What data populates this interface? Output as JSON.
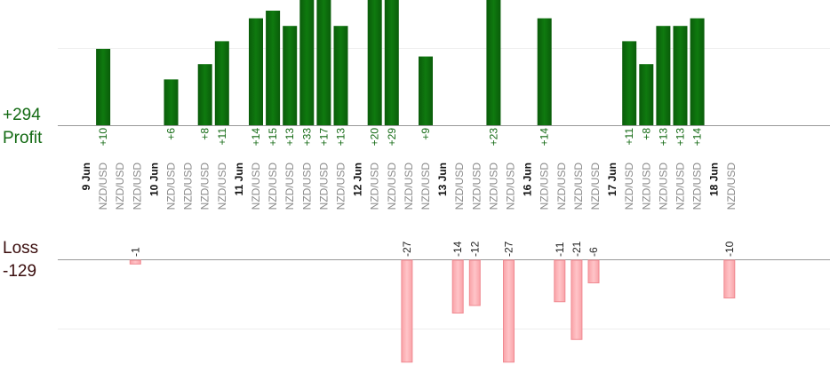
{
  "chart_data": {
    "type": "bar",
    "profit_total": "+294",
    "profit_label": "Profit",
    "loss_label": "Loss",
    "loss_total": "-129",
    "colors": {
      "profit": "#0b650b",
      "loss": "#ffb3b8",
      "profit_text": "#136a13",
      "loss_text": "#3a0d0d"
    },
    "days": [
      {
        "date": "9 Jun",
        "trades": [
          {
            "pair": "NZD/USD",
            "profit": 10
          },
          {
            "pair": "NZD/USD"
          },
          {
            "pair": "NZD/USD",
            "loss": -1
          }
        ]
      },
      {
        "date": "10 Jun",
        "trades": [
          {
            "pair": "NZD/USD",
            "profit": 6
          },
          {
            "pair": "NZD/USD"
          },
          {
            "pair": "NZD/USD",
            "profit": 8
          },
          {
            "pair": "NZD/USD",
            "profit": 11
          }
        ]
      },
      {
        "date": "11 Jun",
        "trades": [
          {
            "pair": "NZD/USD",
            "profit": 14
          },
          {
            "pair": "NZD/USD",
            "profit": 15
          },
          {
            "pair": "NZD/USD",
            "profit": 13
          },
          {
            "pair": "NZD/USD",
            "profit": 33
          },
          {
            "pair": "NZD/USD",
            "profit": 17
          },
          {
            "pair": "NZD/USD",
            "profit": 13
          }
        ]
      },
      {
        "date": "12 Jun",
        "trades": [
          {
            "pair": "NZD/USD",
            "profit": 20
          },
          {
            "pair": "NZD/USD",
            "profit": 29
          },
          {
            "pair": "NZD/USD",
            "loss": -27
          },
          {
            "pair": "NZD/USD",
            "profit": 9
          }
        ]
      },
      {
        "date": "13 Jun",
        "trades": [
          {
            "pair": "NZD/USD",
            "loss": -14
          },
          {
            "pair": "NZD/USD",
            "loss": -12
          },
          {
            "pair": "NZD/USD",
            "profit": 23
          },
          {
            "pair": "NZD/USD",
            "loss": -27
          }
        ]
      },
      {
        "date": "16 Jun",
        "trades": [
          {
            "pair": "NZD/USD",
            "profit": 14
          },
          {
            "pair": "NZD/USD",
            "loss": -11
          },
          {
            "pair": "NZD/USD",
            "loss": -21
          },
          {
            "pair": "NZD/USD",
            "loss": -6
          }
        ]
      },
      {
        "date": "17 Jun",
        "trades": [
          {
            "pair": "NZD/USD",
            "profit": 11
          },
          {
            "pair": "NZD/USD",
            "profit": 8
          },
          {
            "pair": "NZD/USD",
            "profit": 13
          },
          {
            "pair": "NZD/USD",
            "profit": 13
          },
          {
            "pair": "NZD/USD",
            "profit": 14
          }
        ]
      },
      {
        "date": "18 Jun",
        "trades": [
          {
            "pair": "NZD/USD",
            "loss": -10
          }
        ]
      }
    ]
  }
}
